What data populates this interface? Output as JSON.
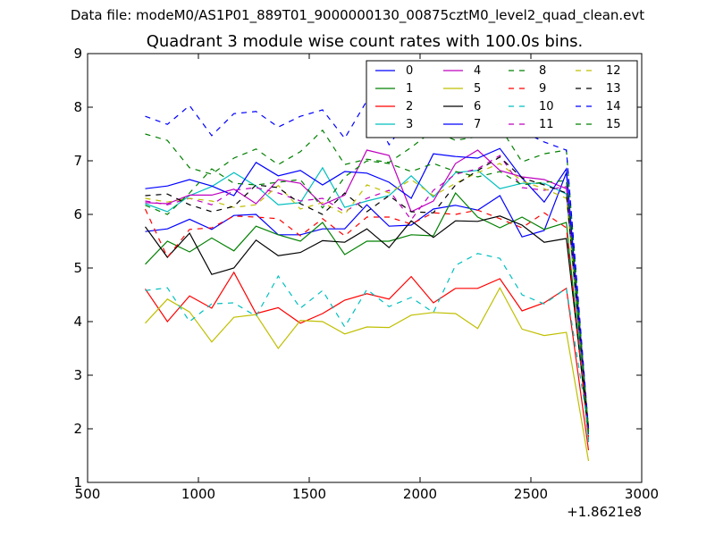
{
  "figure": {
    "suptitle": "Data file: modeM0/AS1P01_889T01_9000000130_00875cztM0_level2_quad_clean.evt"
  },
  "chart_data": {
    "type": "line",
    "title": "Quadrant 3 module wise count rates with 100.0s bins",
    "title_display": "Quadrant 3 module wise count rates with 100.0s bins.",
    "xlabel": "",
    "ylabel": "",
    "x_offset_label": "+1.8621e8",
    "xlim": [
      500,
      3000
    ],
    "ylim": [
      1,
      9
    ],
    "xticks": [
      500,
      1000,
      1500,
      2000,
      2500,
      3000
    ],
    "yticks": [
      1,
      2,
      3,
      4,
      5,
      6,
      7,
      8,
      9
    ],
    "grid": false,
    "legend_location": "upper right",
    "legend_columns": 4,
    "x": [
      760,
      860,
      960,
      1060,
      1160,
      1260,
      1360,
      1460,
      1560,
      1660,
      1760,
      1860,
      1960,
      2060,
      2160,
      2260,
      2360,
      2460,
      2560,
      2660,
      2760
    ],
    "series": [
      {
        "name": "0",
        "color": "#0000ff",
        "dash": "solid",
        "values": [
          5.68,
          5.73,
          5.91,
          5.72,
          5.98,
          6.0,
          5.62,
          5.62,
          5.73,
          5.73,
          6.18,
          5.78,
          5.8,
          6.1,
          6.17,
          6.08,
          6.35,
          5.58,
          5.7,
          6.78,
          1.9
        ]
      },
      {
        "name": "1",
        "color": "#008000",
        "dash": "solid",
        "values": [
          5.07,
          5.5,
          5.3,
          5.56,
          5.32,
          5.78,
          5.62,
          5.5,
          5.85,
          5.25,
          5.5,
          5.5,
          5.62,
          5.6,
          6.4,
          5.95,
          5.75,
          5.95,
          5.72,
          5.85,
          1.8
        ]
      },
      {
        "name": "2",
        "color": "#ff0000",
        "dash": "solid",
        "values": [
          4.61,
          4.0,
          4.48,
          4.25,
          4.92,
          4.15,
          4.26,
          3.97,
          4.15,
          4.4,
          4.52,
          4.42,
          4.84,
          4.35,
          4.62,
          4.62,
          4.8,
          4.2,
          4.35,
          4.62,
          1.6
        ]
      },
      {
        "name": "3",
        "color": "#00bfbf",
        "dash": "solid",
        "values": [
          6.2,
          6.05,
          6.35,
          6.52,
          6.78,
          6.53,
          6.18,
          6.22,
          6.87,
          6.13,
          6.25,
          6.35,
          6.72,
          6.32,
          6.78,
          6.82,
          6.48,
          6.58,
          6.58,
          6.38,
          1.75
        ]
      },
      {
        "name": "4",
        "color": "#bf00bf",
        "dash": "solid",
        "values": [
          6.22,
          6.2,
          6.36,
          6.36,
          6.47,
          6.2,
          6.65,
          6.58,
          6.18,
          6.36,
          7.2,
          7.1,
          6.05,
          6.25,
          6.95,
          7.2,
          6.82,
          6.7,
          6.65,
          6.48,
          1.95
        ]
      },
      {
        "name": "5",
        "color": "#bfbf00",
        "dash": "solid",
        "values": [
          3.97,
          4.42,
          4.18,
          3.62,
          4.08,
          4.13,
          3.5,
          4.02,
          4.0,
          3.77,
          3.9,
          3.89,
          4.12,
          4.17,
          4.15,
          3.87,
          4.63,
          3.86,
          3.74,
          3.8,
          1.4
        ]
      },
      {
        "name": "6",
        "color": "#000000",
        "dash": "solid",
        "values": [
          5.77,
          5.2,
          5.65,
          4.88,
          5.0,
          5.52,
          5.23,
          5.29,
          5.51,
          5.48,
          5.73,
          5.38,
          5.88,
          5.57,
          5.88,
          5.87,
          5.97,
          5.8,
          5.48,
          5.55,
          1.95
        ]
      },
      {
        "name": "7",
        "color": "#0000ff",
        "dash": "solid",
        "values": [
          6.48,
          6.53,
          6.65,
          6.53,
          6.35,
          6.97,
          6.72,
          6.82,
          6.55,
          6.8,
          6.77,
          6.6,
          6.3,
          7.13,
          7.08,
          7.05,
          7.23,
          6.68,
          6.23,
          6.85,
          2.0
        ]
      },
      {
        "name": "8",
        "color": "#008000",
        "dash": "dashed",
        "values": [
          7.5,
          7.38,
          6.87,
          6.75,
          7.05,
          7.22,
          6.93,
          7.17,
          7.57,
          6.93,
          7.03,
          6.97,
          7.25,
          7.57,
          7.38,
          7.45,
          7.63,
          6.98,
          7.13,
          7.2,
          1.9
        ]
      },
      {
        "name": "9",
        "color": "#ff0000",
        "dash": "dashed",
        "values": [
          6.1,
          5.2,
          5.72,
          5.75,
          5.97,
          5.95,
          5.92,
          5.6,
          5.92,
          5.6,
          5.95,
          5.95,
          5.82,
          6.03,
          6.0,
          6.08,
          5.92,
          5.75,
          6.03,
          5.75,
          1.85
        ]
      },
      {
        "name": "10",
        "color": "#00bfbf",
        "dash": "dashed",
        "values": [
          4.58,
          4.63,
          4.0,
          4.33,
          4.35,
          4.1,
          4.85,
          4.25,
          4.58,
          3.9,
          4.6,
          4.28,
          4.45,
          4.17,
          5.05,
          5.27,
          5.18,
          4.5,
          4.33,
          4.62,
          2.0
        ]
      },
      {
        "name": "11",
        "color": "#bf00bf",
        "dash": "dashed",
        "values": [
          6.25,
          6.18,
          6.3,
          6.18,
          6.45,
          6.5,
          6.4,
          6.25,
          6.3,
          6.05,
          6.3,
          6.45,
          5.9,
          6.45,
          6.75,
          6.85,
          7.1,
          6.5,
          6.45,
          6.52,
          2.0
        ]
      },
      {
        "name": "12",
        "color": "#bfbf00",
        "dash": "dashed",
        "values": [
          6.3,
          6.23,
          6.3,
          6.25,
          6.13,
          6.18,
          6.54,
          6.1,
          6.22,
          6.0,
          6.55,
          6.4,
          6.65,
          6.35,
          6.58,
          6.78,
          6.95,
          6.62,
          6.48,
          6.3,
          2.05
        ]
      },
      {
        "name": "13",
        "color": "#000000",
        "dash": "dashed",
        "values": [
          6.35,
          6.38,
          6.18,
          6.05,
          6.15,
          6.55,
          6.5,
          6.2,
          6.0,
          6.4,
          6.05,
          6.35,
          6.05,
          6.03,
          6.55,
          6.82,
          7.07,
          6.68,
          6.55,
          6.4,
          2.0
        ]
      },
      {
        "name": "14",
        "color": "#0000ff",
        "dash": "dashed",
        "values": [
          7.83,
          7.68,
          8.03,
          7.47,
          7.88,
          7.92,
          7.63,
          7.83,
          7.95,
          7.42,
          8.12,
          7.3,
          7.85,
          7.7,
          7.83,
          8.55,
          8.08,
          7.55,
          7.35,
          7.2,
          2.0
        ]
      },
      {
        "name": "15",
        "color": "#008000",
        "dash": "dashed",
        "values": [
          6.17,
          6.0,
          6.4,
          6.85,
          6.58,
          6.55,
          6.6,
          6.65,
          6.12,
          6.7,
          7.0,
          6.95,
          6.8,
          6.95,
          6.8,
          6.7,
          6.8,
          6.55,
          6.6,
          6.63,
          1.95
        ]
      }
    ]
  }
}
